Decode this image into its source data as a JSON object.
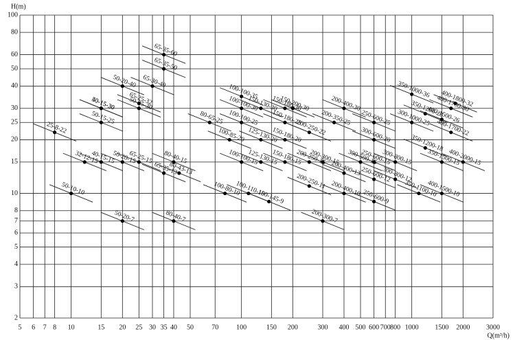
{
  "chart_data": {
    "type": "scatter",
    "xlabel": "Q(m³/h)",
    "ylabel": "H(m)",
    "xlog": true,
    "ylog": true,
    "grid": true,
    "xlim": [
      5,
      3000
    ],
    "ylim": [
      2,
      100
    ],
    "xticks": [
      5,
      6,
      7,
      8,
      10,
      15,
      20,
      25,
      30,
      35,
      40,
      50,
      70,
      100,
      150,
      200,
      300,
      400,
      500,
      600,
      700,
      800,
      1000,
      1500,
      2000,
      3000
    ],
    "yticks": [
      2,
      3,
      4,
      5,
      6,
      7,
      8,
      10,
      15,
      20,
      25,
      30,
      40,
      50,
      60,
      80,
      100
    ],
    "color": "#000000",
    "labels": [
      "65-35-60",
      "65-35-50",
      "65-30-40",
      "50-20-40",
      "50-25-30",
      "65-25-32",
      "50-15-30",
      "40-15-30",
      "50-15-25",
      "25-8-22",
      "32-12-15",
      "40-15-15",
      "50-20-15",
      "65-25-15",
      "80-40-15",
      "65-35-13",
      "80-43-13",
      "50-10-10",
      "50-20-7",
      "80-40-7",
      "80-65-25",
      "100-100-35",
      "100-100-30",
      "100-100-25",
      "150-130-30",
      "150-180-30",
      "150-200-30",
      "150-180-25",
      "100-85-20",
      "125-130-20",
      "150-180-20",
      "200-250-22",
      "100-100-15",
      "125-130-15",
      "150-180-15",
      "200-250-15",
      "200-300-15",
      "100-80-10",
      "100-110-10",
      "150-145-9",
      "200-250-11",
      "200-400-13",
      "200-400-10",
      "200-300-7",
      "200-400-30",
      "200-350-25",
      "250-600-25",
      "300-600-20",
      "250-600-15",
      "300-500-15",
      "250-600-12",
      "300-800-12",
      "250-600-9",
      "350-1000-36",
      "350-1200-28",
      "300-1000-25",
      "300-800-15",
      "350-1200-18",
      "400-1800-32",
      "400-1700-30",
      "400-1500-26",
      "400-1700-22",
      "400-2000-15",
      "350-1500-15",
      "400-1500-10",
      "350-1100-10"
    ],
    "x": [
      35,
      35,
      30,
      20,
      25,
      25,
      15,
      15,
      15,
      8,
      12,
      15,
      20,
      25,
      40,
      35,
      43,
      10,
      20,
      40,
      65,
      100,
      100,
      100,
      130,
      180,
      200,
      180,
      85,
      130,
      180,
      250,
      100,
      130,
      180,
      250,
      300,
      80,
      110,
      145,
      250,
      400,
      400,
      300,
      400,
      350,
      600,
      600,
      600,
      500,
      600,
      800,
      600,
      1000,
      1200,
      1000,
      800,
      1200,
      1800,
      1700,
      1500,
      1700,
      2000,
      1500,
      1500,
      1100
    ],
    "values": [
      60,
      50,
      40,
      40,
      30,
      32,
      30,
      30,
      25,
      22,
      15,
      15,
      15,
      15,
      15,
      13,
      13,
      10,
      7,
      7,
      25,
      35,
      30,
      25,
      30,
      30,
      30,
      25,
      20,
      20,
      20,
      22,
      15,
      15,
      15,
      15,
      15,
      10,
      10,
      9,
      11,
      13,
      10,
      7,
      30,
      25,
      25,
      20,
      15,
      15,
      12,
      12,
      9,
      36,
      28,
      25,
      15,
      18,
      32,
      30,
      26,
      22,
      15,
      15,
      10,
      10
    ]
  }
}
